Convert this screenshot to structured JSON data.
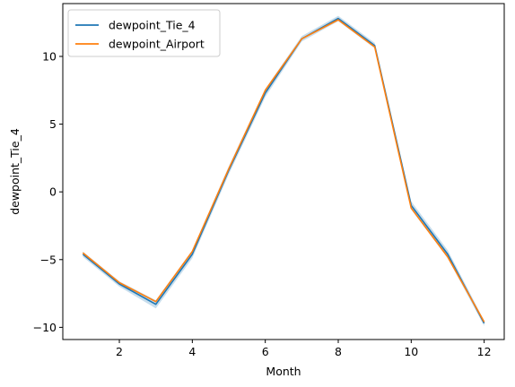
{
  "chart_data": {
    "type": "line",
    "title": "",
    "xlabel": "Month",
    "ylabel": "dewpoint_Tie_4",
    "xlim": [
      0.45,
      12.55
    ],
    "ylim": [
      -10.9,
      13.9
    ],
    "xticks": [
      2,
      4,
      6,
      8,
      10,
      12
    ],
    "yticks": [
      -10,
      -5,
      0,
      5,
      10
    ],
    "x": [
      1,
      2,
      3,
      4,
      5,
      6,
      7,
      8,
      9,
      10,
      11,
      12
    ],
    "grid": false,
    "legend_position": "upper left",
    "series": [
      {
        "name": "dewpoint_Tie_4",
        "color": "#1f77b4",
        "values": [
          -4.6,
          -6.8,
          -8.3,
          -4.6,
          1.6,
          7.3,
          11.3,
          12.8,
          10.8,
          -1.0,
          -4.6,
          -9.7
        ],
        "band_low": [
          -4.8,
          -7.0,
          -8.6,
          -4.9,
          1.3,
          7.0,
          11.1,
          12.6,
          10.6,
          -1.3,
          -4.9,
          -9.9
        ],
        "band_high": [
          -4.4,
          -6.6,
          -8.0,
          -4.3,
          1.9,
          7.6,
          11.5,
          13.0,
          11.0,
          -0.7,
          -4.3,
          -9.5
        ]
      },
      {
        "name": "dewpoint_Airport",
        "color": "#ff7f0e",
        "values": [
          -4.5,
          -6.7,
          -8.1,
          -4.4,
          1.7,
          7.5,
          11.3,
          12.7,
          10.7,
          -1.2,
          -4.8,
          -9.6
        ]
      }
    ]
  }
}
